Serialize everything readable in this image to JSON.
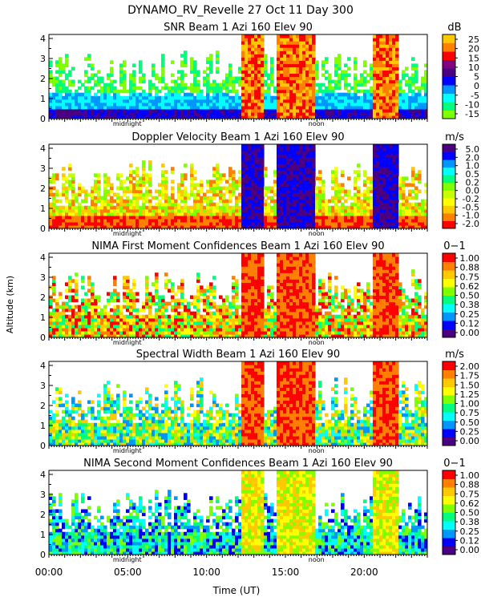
{
  "title": "DYNAMO_RV_Revelle  27 Oct 11 Day 300",
  "ylabel": "Altitude (km)",
  "xlabel": "Time (UT)",
  "chart_data": [
    {
      "type": "heatmap",
      "title": "SNR Beam 1 Azi 160 Elev 90",
      "units": "dB",
      "xlim": [
        0,
        24
      ],
      "ylim": [
        0,
        4.2
      ],
      "yticks": [
        0,
        1,
        2,
        3,
        4
      ],
      "colorbar_ticks": [
        "25",
        "20",
        "15",
        "10",
        "5",
        "0",
        "-5",
        "-10",
        "-15"
      ],
      "colors": [
        "#7FFF00",
        "#00FF7F",
        "#00FFFF",
        "#0096FF",
        "#0000FF",
        "#4B0082",
        "#800080",
        "#FF0000",
        "#FF8000",
        "#FFC800"
      ],
      "markers": [
        "midnight",
        "noon"
      ]
    },
    {
      "type": "heatmap",
      "title": "Doppler Velocity Beam 1 Azi 160 Elev 90",
      "units": "m/s",
      "xlim": [
        0,
        24
      ],
      "ylim": [
        0,
        4.2
      ],
      "yticks": [
        0,
        1,
        2,
        3,
        4
      ],
      "colorbar_ticks": [
        "5.0",
        "2.0",
        "1.0",
        "0.5",
        "0.2",
        "0.0",
        "-0.2",
        "-0.5",
        "-1.0",
        "-2.0"
      ],
      "colors": [
        "#FF0000",
        "#FF8000",
        "#FFC800",
        "#FFFF00",
        "#C8FF00",
        "#7FFF00",
        "#00FF7F",
        "#00FFFF",
        "#0096FF",
        "#0000FF",
        "#4B0082"
      ],
      "markers": [
        "midnight",
        "noon"
      ]
    },
    {
      "type": "heatmap",
      "title": "NIMA First Moment Confidences Beam 1 Azi 160 Elev 90",
      "units": "0−1",
      "xlim": [
        0,
        24
      ],
      "ylim": [
        0,
        4.2
      ],
      "yticks": [
        0,
        1,
        2,
        3,
        4
      ],
      "colorbar_ticks": [
        "1.00",
        "0.88",
        "0.75",
        "0.62",
        "0.50",
        "0.38",
        "0.25",
        "0.12",
        "0.00"
      ],
      "colors": [
        "#4B0082",
        "#0000FF",
        "#0096FF",
        "#00FFFF",
        "#00FF7F",
        "#7FFF00",
        "#FFFF00",
        "#FFC800",
        "#FF8000",
        "#FF0000"
      ],
      "markers": [
        "midnight",
        "noon"
      ]
    },
    {
      "type": "heatmap",
      "title": "Spectral Width Beam 1 Azi 160 Elev 90",
      "units": "m/s",
      "xlim": [
        0,
        24
      ],
      "ylim": [
        0,
        4.2
      ],
      "yticks": [
        0,
        1,
        2,
        3,
        4
      ],
      "colorbar_ticks": [
        "2.00",
        "1.75",
        "1.50",
        "1.25",
        "1.00",
        "0.75",
        "0.50",
        "0.25",
        "0.00"
      ],
      "colors": [
        "#4B0082",
        "#0000FF",
        "#0096FF",
        "#00FFFF",
        "#00FF7F",
        "#7FFF00",
        "#FFFF00",
        "#FFC800",
        "#FF8000",
        "#FF0000"
      ],
      "markers": [
        "midnight",
        "noon"
      ]
    },
    {
      "type": "heatmap",
      "title": "NIMA Second Moment Confidences Beam 1 Azi 160 Elev 90",
      "units": "0−1",
      "xlim": [
        0,
        24
      ],
      "ylim": [
        0,
        4.2
      ],
      "yticks": [
        0,
        1,
        2,
        3,
        4
      ],
      "colorbar_ticks": [
        "1.00",
        "0.88",
        "0.75",
        "0.62",
        "0.50",
        "0.38",
        "0.25",
        "0.12",
        "0.00"
      ],
      "colors": [
        "#4B0082",
        "#0000FF",
        "#0096FF",
        "#00FFFF",
        "#00FF7F",
        "#7FFF00",
        "#FFFF00",
        "#FFC800",
        "#FF8000",
        "#FF0000"
      ],
      "markers": [
        "midnight",
        "noon"
      ],
      "xticks": [
        "00:00",
        "05:00",
        "10:00",
        "15:00",
        "20:00"
      ],
      "xtick_hours": [
        0,
        5,
        10,
        15,
        20
      ]
    }
  ]
}
